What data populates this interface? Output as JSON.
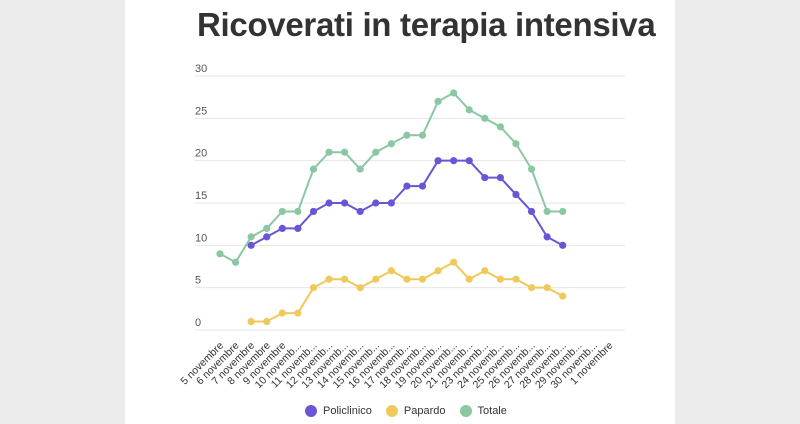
{
  "title": "Ricoverati in terapia intensiva",
  "colors": {
    "policlinico": "#6b55d6",
    "papardo": "#f0c95c",
    "totale": "#8cc7a3",
    "grid": "#e6e6e6",
    "background": "#ececec"
  },
  "chart_data": {
    "type": "line",
    "title": "Ricoverati in terapia intensiva",
    "xlabel": "",
    "ylabel": "",
    "ylim": [
      0,
      30
    ],
    "yticks": [
      0,
      5,
      10,
      15,
      20,
      25,
      30
    ],
    "grid": true,
    "legend_position": "bottom",
    "categories": [
      "5 novembre",
      "6 novembre",
      "7 novembre",
      "8 novembre",
      "9 novembre",
      "10 novembre",
      "11 novembre",
      "12 novembre",
      "13 novembre",
      "14 novembre",
      "15 novembre",
      "16 novembre",
      "17 novembre",
      "18 novembre",
      "19 novembre",
      "20 novembre",
      "21 novembre",
      "23 novembre",
      "24 novembre",
      "25 novembre",
      "26 novembre",
      "27 novembre",
      "28 novembre",
      "29 novembre",
      "30 novembre",
      "1 novembre"
    ],
    "category_labels": [
      "5 novembre",
      "6 novembre",
      "7 novembre",
      "8 novembre",
      "9 novembre",
      "10 novemb...",
      "11 novemb...",
      "12 novemb...",
      "13 novemb...",
      "14 novemb...",
      "15 novemb...",
      "16 novemb...",
      "17 novemb...",
      "18 novemb...",
      "19 novemb...",
      "20 novemb...",
      "21 novemb...",
      "23 novemb...",
      "24 novemb...",
      "25 novemb...",
      "26 novemb...",
      "27 novemb...",
      "28 novemb...",
      "29 novemb...",
      "30 novemb...",
      "1 novembre"
    ],
    "series": [
      {
        "name": "Policlinico",
        "color": "#6b55d6",
        "values": [
          null,
          null,
          10,
          11,
          12,
          12,
          14,
          15,
          15,
          14,
          15,
          15,
          17,
          17,
          20,
          20,
          20,
          18,
          18,
          16,
          14,
          11,
          10,
          null,
          null,
          null
        ]
      },
      {
        "name": "Papardo",
        "color": "#f0c95c",
        "values": [
          null,
          null,
          1,
          1,
          2,
          2,
          5,
          6,
          6,
          5,
          6,
          7,
          6,
          6,
          7,
          8,
          6,
          7,
          6,
          6,
          5,
          5,
          4,
          null,
          null,
          null
        ]
      },
      {
        "name": "Totale",
        "color": "#8cc7a3",
        "values": [
          9,
          8,
          11,
          12,
          14,
          14,
          19,
          21,
          21,
          19,
          21,
          22,
          23,
          23,
          27,
          28,
          26,
          25,
          24,
          22,
          19,
          14,
          14,
          null,
          null,
          null
        ]
      }
    ]
  },
  "legend": [
    {
      "label": "Policlinico",
      "color": "#6b55d6"
    },
    {
      "label": "Papardo",
      "color": "#f0c95c"
    },
    {
      "label": "Totale",
      "color": "#8cc7a3"
    }
  ]
}
